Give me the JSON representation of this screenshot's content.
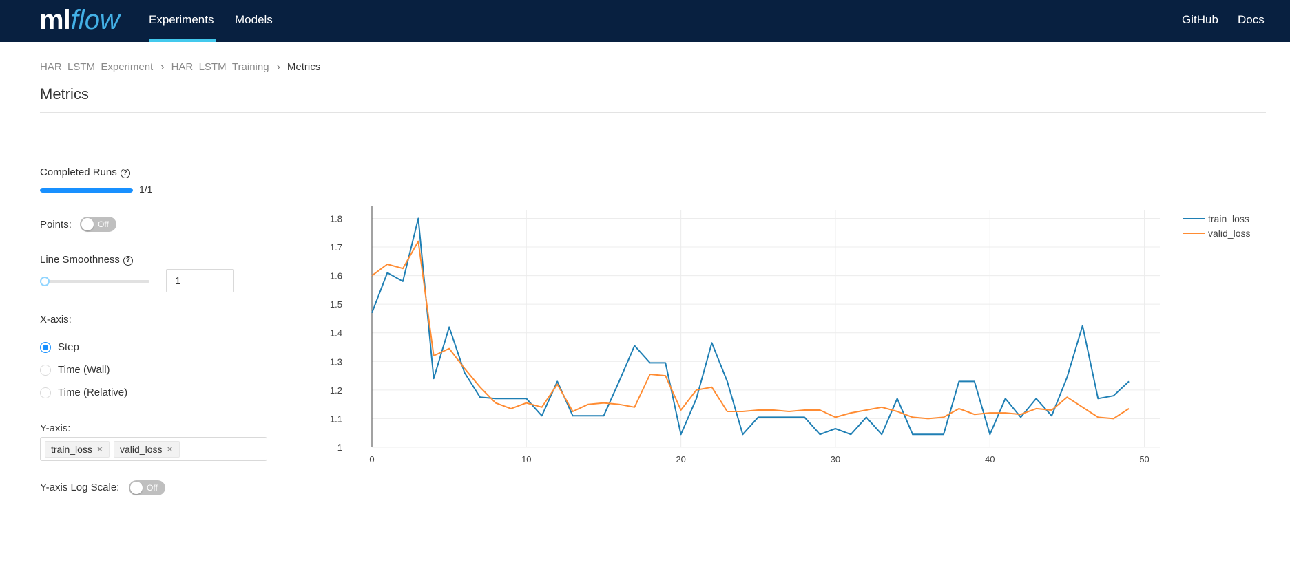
{
  "nav": {
    "logo_ml": "ml",
    "logo_flow": "flow",
    "experiments": "Experiments",
    "models": "Models",
    "github": "GitHub",
    "docs": "Docs"
  },
  "breadcrumb": {
    "experiment": "HAR_LSTM_Experiment",
    "run": "HAR_LSTM_Training",
    "current": "Metrics"
  },
  "page_title": "Metrics",
  "controls": {
    "completed_runs_label": "Completed Runs",
    "completed_runs_text": "1/1",
    "completed_runs_fraction": 1.0,
    "points_label": "Points:",
    "points_toggle": "Off",
    "smoothness_label": "Line Smoothness",
    "smoothness_value": "1",
    "xaxis_label": "X-axis:",
    "xaxis_options": [
      "Step",
      "Time (Wall)",
      "Time (Relative)"
    ],
    "xaxis_selected": "Step",
    "yaxis_label": "Y-axis:",
    "yaxis_tags": [
      "train_loss",
      "valid_loss"
    ],
    "log_scale_label": "Y-axis Log Scale:",
    "log_scale_toggle": "Off"
  },
  "colors": {
    "nav_bg": "#082040",
    "accent": "#1890ff",
    "train_loss": "#1f7fb4",
    "valid_loss": "#ff8c33"
  },
  "chart_data": {
    "type": "line",
    "xlim": [
      0,
      51
    ],
    "ylim": [
      1,
      1.83
    ],
    "xticks": [
      0,
      10,
      20,
      30,
      40,
      50
    ],
    "yticks": [
      1,
      1.1,
      1.2,
      1.3,
      1.4,
      1.5,
      1.6,
      1.7,
      1.8
    ],
    "grid": true,
    "legend_position": "top-right",
    "series": [
      {
        "name": "train_loss",
        "color": "#1f7fb4",
        "x": [
          0,
          1,
          2,
          3,
          4,
          5,
          6,
          7,
          8,
          9,
          10,
          11,
          12,
          13,
          14,
          15,
          16,
          17,
          18,
          19,
          20,
          21,
          22,
          23,
          24,
          25,
          26,
          27,
          28,
          29,
          30,
          31,
          32,
          33,
          34,
          35,
          36,
          37,
          38,
          39,
          40,
          41,
          42,
          43,
          44,
          45,
          46,
          47,
          48,
          49
        ],
        "values": [
          1.47,
          1.61,
          1.58,
          1.8,
          1.24,
          1.42,
          1.26,
          1.175,
          1.17,
          1.17,
          1.17,
          1.11,
          1.23,
          1.11,
          1.11,
          1.11,
          1.23,
          1.355,
          1.295,
          1.295,
          1.045,
          1.17,
          1.365,
          1.23,
          1.045,
          1.105,
          1.105,
          1.105,
          1.105,
          1.045,
          1.065,
          1.045,
          1.105,
          1.045,
          1.17,
          1.045,
          1.045,
          1.045,
          1.23,
          1.23,
          1.045,
          1.17,
          1.105,
          1.17,
          1.11,
          1.245,
          1.425,
          1.17,
          1.18,
          1.23
        ]
      },
      {
        "name": "valid_loss",
        "color": "#ff8c33",
        "x": [
          0,
          1,
          2,
          3,
          4,
          5,
          6,
          7,
          8,
          9,
          10,
          11,
          12,
          13,
          14,
          15,
          16,
          17,
          18,
          19,
          20,
          21,
          22,
          23,
          24,
          25,
          26,
          27,
          28,
          29,
          30,
          31,
          32,
          33,
          34,
          35,
          36,
          37,
          38,
          39,
          40,
          41,
          42,
          43,
          44,
          45,
          46,
          47,
          48,
          49
        ],
        "values": [
          1.6,
          1.64,
          1.625,
          1.72,
          1.32,
          1.345,
          1.275,
          1.21,
          1.155,
          1.135,
          1.155,
          1.14,
          1.22,
          1.125,
          1.15,
          1.155,
          1.15,
          1.14,
          1.255,
          1.25,
          1.13,
          1.2,
          1.21,
          1.125,
          1.125,
          1.13,
          1.13,
          1.125,
          1.13,
          1.13,
          1.105,
          1.12,
          1.13,
          1.14,
          1.125,
          1.105,
          1.1,
          1.105,
          1.135,
          1.115,
          1.12,
          1.12,
          1.115,
          1.135,
          1.13,
          1.175,
          1.14,
          1.105,
          1.1,
          1.135
        ]
      }
    ]
  }
}
